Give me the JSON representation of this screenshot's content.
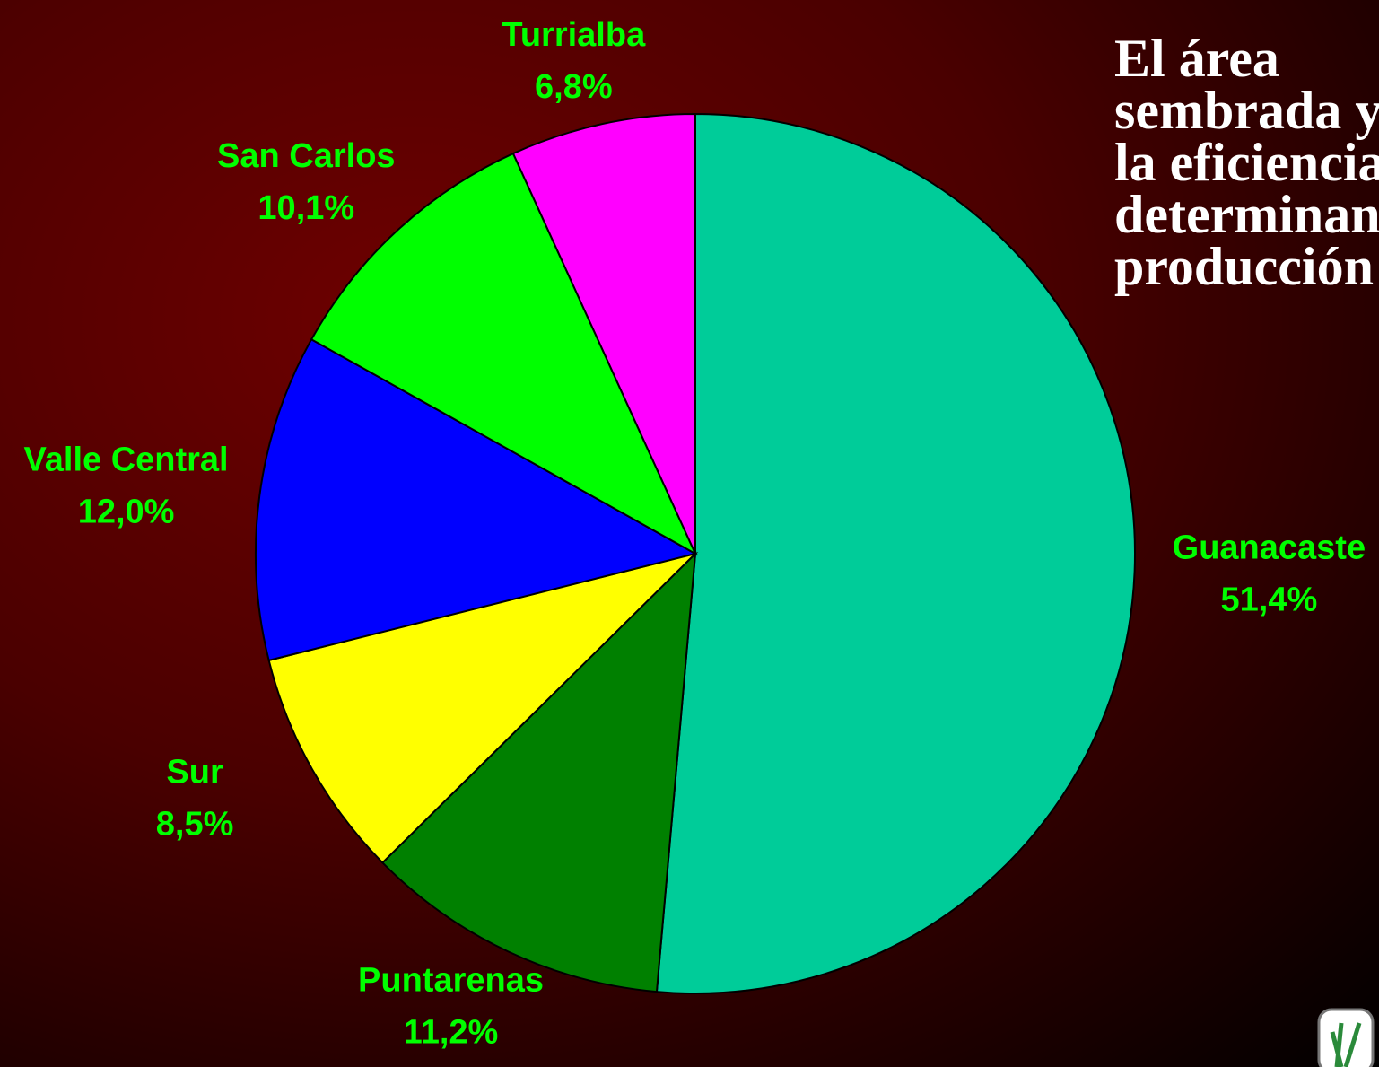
{
  "chart_data": {
    "type": "pie",
    "categories": [
      "Guanacaste",
      "Puntarenas",
      "Sur",
      "Valle Central",
      "San Carlos",
      "Turrialba"
    ],
    "values": [
      51.4,
      11.2,
      8.5,
      12.0,
      10.1,
      6.8
    ],
    "value_labels": [
      "51,4%",
      "11,2%",
      "8,5%",
      "12,0%",
      "10,1%",
      "6,8%"
    ],
    "colors": [
      "#00cc99",
      "#008000",
      "#ffff00",
      "#0000ff",
      "#00ff00",
      "#ff00ff"
    ],
    "label_color": "#00ff00",
    "start_angle": 0,
    "direction": "clockwise"
  },
  "text": {
    "lines": [
      "El área",
      "sembrada y",
      "la eficiencia",
      "determinan",
      "producción"
    ]
  }
}
